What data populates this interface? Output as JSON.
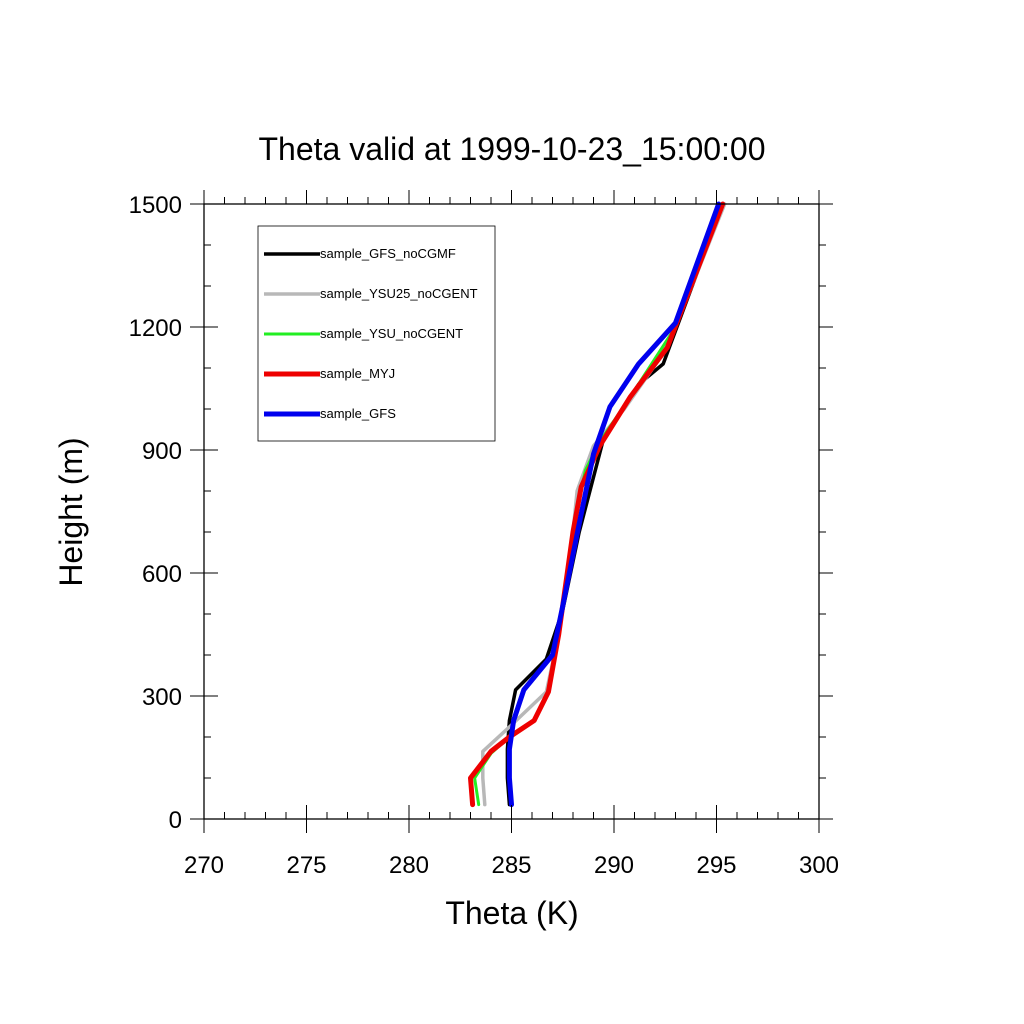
{
  "chart_data": {
    "type": "line",
    "title": "Theta valid at 1999-10-23_15:00:00",
    "xlabel": "Theta (K)",
    "ylabel": "Height (m)",
    "xlim": [
      270,
      300
    ],
    "ylim": [
      0,
      1500
    ],
    "xticks": [
      270,
      275,
      280,
      285,
      290,
      295,
      300
    ],
    "yticks": [
      0,
      300,
      600,
      900,
      1200,
      1500
    ],
    "grid": false,
    "legend_position": "top-left",
    "series": [
      {
        "name": "sample_GFS_noCGMF",
        "color": "#000000",
        "points": [
          [
            284.9,
            35
          ],
          [
            284.8,
            100
          ],
          [
            284.8,
            170
          ],
          [
            284.9,
            240
          ],
          [
            285.2,
            315
          ],
          [
            286.7,
            390
          ],
          [
            287.5,
            510
          ],
          [
            288.3,
            700
          ],
          [
            289.5,
            930
          ],
          [
            291.2,
            1060
          ],
          [
            292.4,
            1110
          ],
          [
            295.3,
            1500
          ]
        ]
      },
      {
        "name": "sample_YSU25_noCGENT",
        "color": "#b8b8b8",
        "points": [
          [
            283.7,
            35
          ],
          [
            283.6,
            100
          ],
          [
            283.6,
            165
          ],
          [
            284.8,
            220
          ],
          [
            286.7,
            310
          ],
          [
            287.3,
            450
          ],
          [
            287.8,
            600
          ],
          [
            288.2,
            800
          ],
          [
            289.0,
            910
          ],
          [
            290.5,
            1000
          ],
          [
            292.6,
            1150
          ],
          [
            295.4,
            1500
          ]
        ]
      },
      {
        "name": "sample_YSU_noCGENT",
        "color": "#22ee22",
        "points": [
          [
            283.4,
            35
          ],
          [
            283.2,
            100
          ],
          [
            284.0,
            160
          ],
          [
            284.9,
            200
          ],
          [
            286.1,
            240
          ],
          [
            286.8,
            310
          ],
          [
            287.3,
            450
          ],
          [
            288.0,
            700
          ],
          [
            288.6,
            850
          ],
          [
            289.3,
            920
          ],
          [
            290.8,
            1030
          ],
          [
            293.0,
            1200
          ],
          [
            295.2,
            1500
          ]
        ]
      },
      {
        "name": "sample_MYJ",
        "color": "#ee0000",
        "points": [
          [
            283.1,
            35
          ],
          [
            283.0,
            100
          ],
          [
            284.0,
            165
          ],
          [
            284.9,
            200
          ],
          [
            286.1,
            240
          ],
          [
            286.8,
            310
          ],
          [
            287.3,
            450
          ],
          [
            288.0,
            700
          ],
          [
            288.4,
            810
          ],
          [
            289.3,
            910
          ],
          [
            290.8,
            1030
          ],
          [
            292.6,
            1150
          ],
          [
            295.3,
            1500
          ]
        ]
      },
      {
        "name": "sample_GFS",
        "color": "#0000ee",
        "points": [
          [
            285.0,
            35
          ],
          [
            284.9,
            100
          ],
          [
            284.9,
            170
          ],
          [
            285.1,
            240
          ],
          [
            285.6,
            315
          ],
          [
            287.0,
            400
          ],
          [
            287.5,
            520
          ],
          [
            288.3,
            720
          ],
          [
            289.0,
            890
          ],
          [
            289.8,
            1005
          ],
          [
            291.2,
            1110
          ],
          [
            293.0,
            1210
          ],
          [
            295.1,
            1500
          ]
        ]
      }
    ]
  }
}
